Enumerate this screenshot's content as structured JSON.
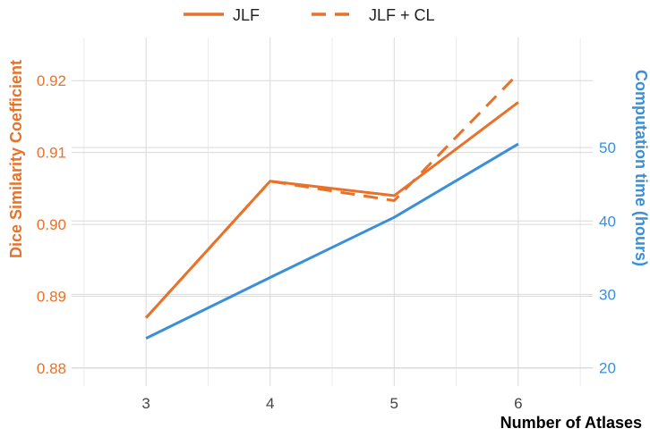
{
  "chart_data": {
    "type": "line",
    "x": [
      3,
      4,
      5,
      6
    ],
    "xlabel": "Number of Atlases",
    "xlim": [
      2.4,
      6.6
    ],
    "x_ticks": [
      "3",
      "4",
      "5",
      "6"
    ],
    "y_left": {
      "label": "Dice Similarity Coefficient",
      "lim": [
        0.8775,
        0.926
      ],
      "ticks": [
        "0.88",
        "0.89",
        "0.90",
        "0.91",
        "0.92"
      ],
      "tick_values": [
        0.88,
        0.89,
        0.9,
        0.91,
        0.92
      ],
      "color": "#E8722A"
    },
    "y_right": {
      "label": "Computation time (hours)",
      "lim": [
        17.5,
        65
      ],
      "ticks": [
        "20",
        "30",
        "40",
        "50"
      ],
      "tick_values": [
        20,
        30,
        40,
        50
      ],
      "color": "#3A8FD9"
    },
    "series": [
      {
        "name": "JLF",
        "axis": "left",
        "style": "solid",
        "color": "#E8722A",
        "values": [
          0.887,
          0.906,
          0.904,
          0.917
        ]
      },
      {
        "name": "JLF + CL",
        "axis": "left",
        "style": "dashed",
        "color": "#E8722A",
        "values": [
          0.887,
          0.906,
          0.9033,
          0.921
        ]
      },
      {
        "axis": "right",
        "style": "solid",
        "color": "#3A8FD9",
        "values": [
          24,
          32.3,
          40.5,
          50.5
        ]
      }
    ],
    "legend": "top",
    "grid": true
  }
}
